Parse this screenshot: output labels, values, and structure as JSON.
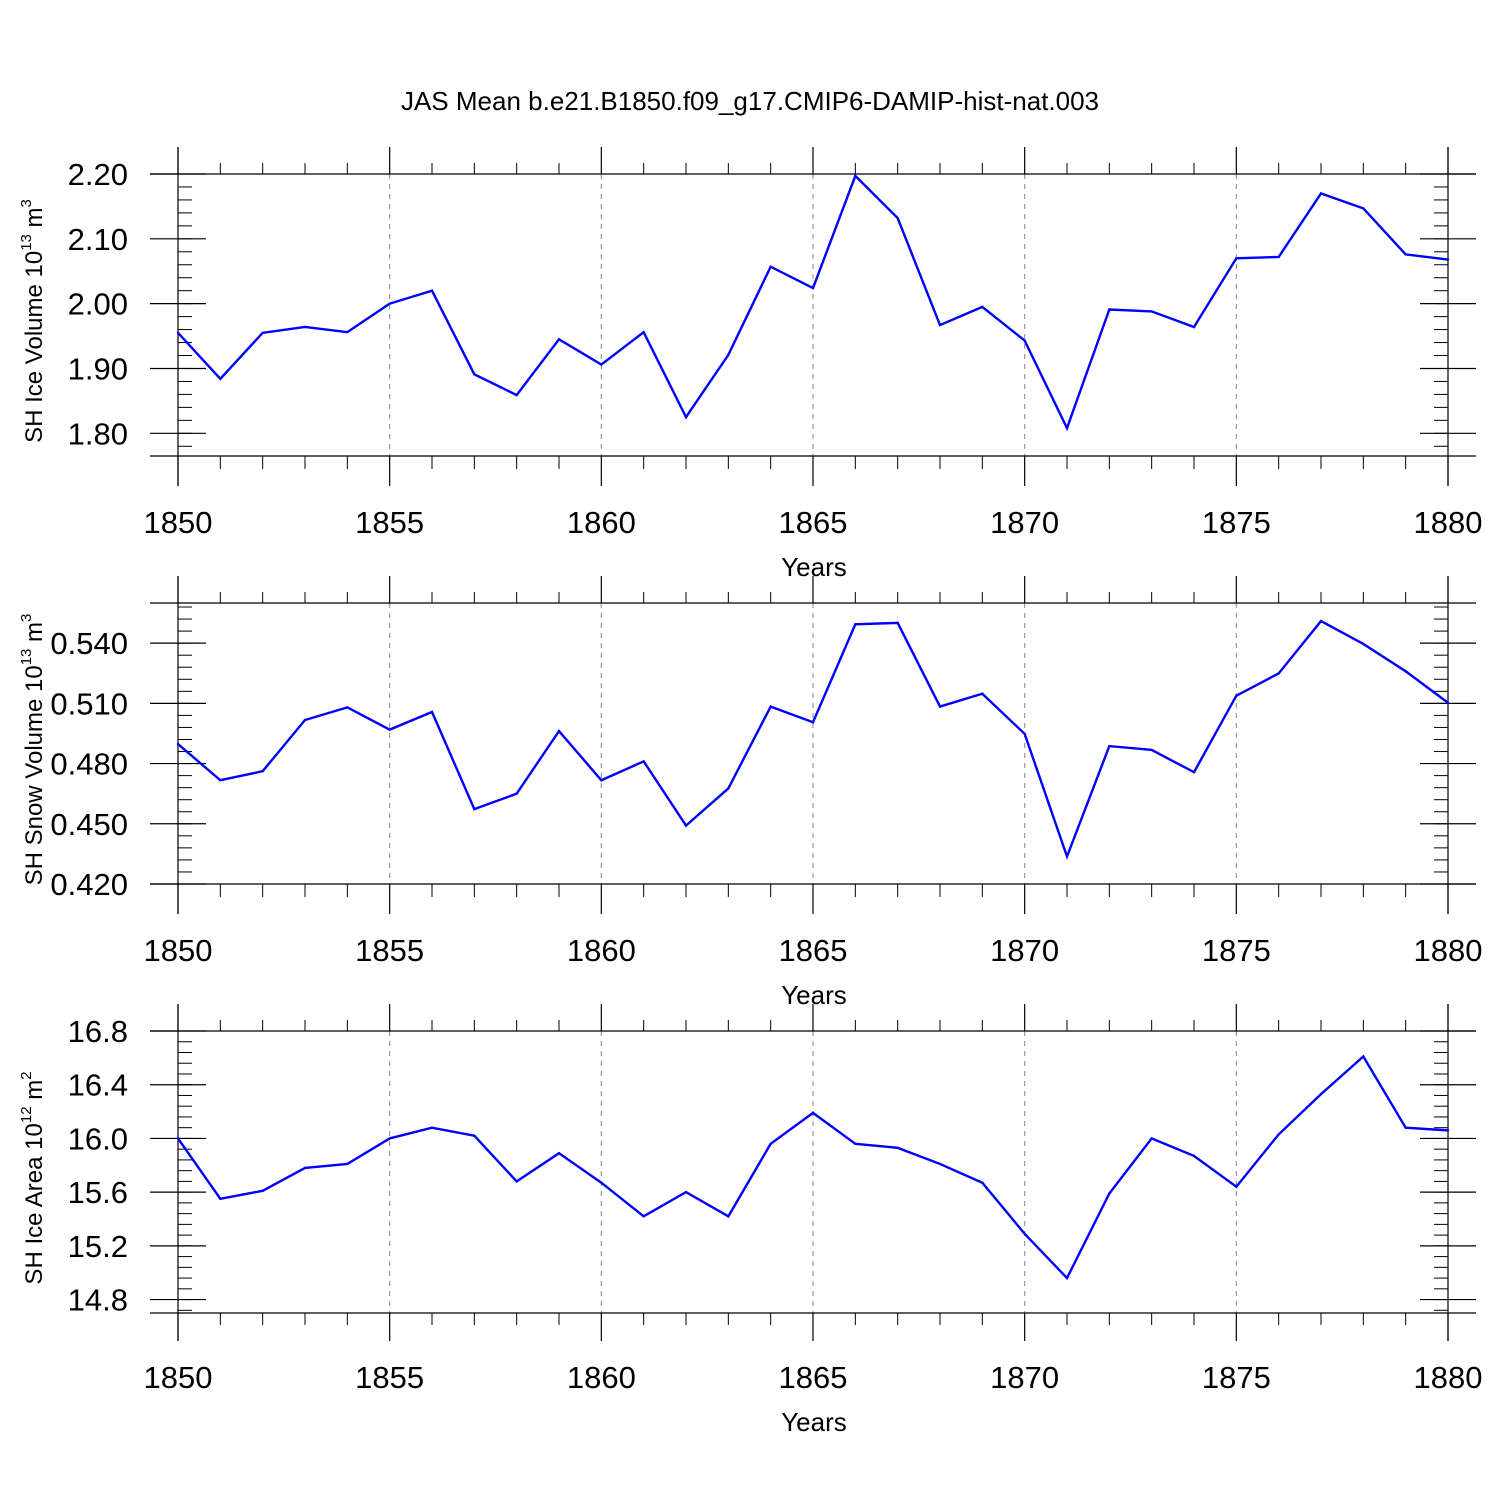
{
  "figure": {
    "title": "JAS Mean b.e21.B1850.f09_g17.CMIP6-DAMIP-hist-nat.003",
    "line_color": "#0000ff",
    "grid_color": "#999999"
  },
  "chart_data": [
    {
      "type": "line",
      "title": "JAS Mean b.e21.B1850.f09_g17.CMIP6-DAMIP-hist-nat.003",
      "xlabel": "Years",
      "ylabel": {
        "text": "SH Ice Volume 10",
        "sup": "13",
        "unit": " m",
        "unit_sup": "3"
      },
      "xlim": [
        1850,
        1880
      ],
      "ylim": [
        1.765,
        2.2
      ],
      "x_ticks": [
        1850,
        1855,
        1860,
        1865,
        1870,
        1875,
        1880
      ],
      "x_tick_labels": [
        "1850",
        "1855",
        "1860",
        "1865",
        "1870",
        "1875",
        "1880"
      ],
      "y_ticks": [
        1.8,
        1.9,
        2.0,
        2.1,
        2.2
      ],
      "y_tick_labels": [
        "1.80",
        "1.90",
        "2.00",
        "2.10",
        "2.20"
      ],
      "y_minor_step": 0.02,
      "grid": "dashed vertical at major x ticks",
      "series": [
        {
          "name": "SH Ice Volume",
          "x": [
            1850,
            1851,
            1852,
            1853,
            1854,
            1855,
            1856,
            1857,
            1858,
            1859,
            1860,
            1861,
            1862,
            1863,
            1864,
            1865,
            1866,
            1867,
            1868,
            1869,
            1870,
            1871,
            1872,
            1873,
            1874,
            1875,
            1876,
            1877,
            1878,
            1879,
            1880
          ],
          "values": [
            1.955,
            1.884,
            1.955,
            1.964,
            1.956,
            2.0,
            2.02,
            1.891,
            1.859,
            1.945,
            1.906,
            1.956,
            1.825,
            1.921,
            2.057,
            2.024,
            2.197,
            2.132,
            1.967,
            1.995,
            1.943,
            1.808,
            1.991,
            1.988,
            1.964,
            2.07,
            2.072,
            2.17,
            2.147,
            2.076,
            2.068
          ]
        }
      ]
    },
    {
      "type": "line",
      "title": "",
      "xlabel": "Years",
      "ylabel": {
        "text": "SH Snow Volume 10",
        "sup": "13",
        "unit": " m",
        "unit_sup": "3"
      },
      "xlim": [
        1850,
        1880
      ],
      "ylim": [
        0.42,
        0.56
      ],
      "x_ticks": [
        1850,
        1855,
        1860,
        1865,
        1870,
        1875,
        1880
      ],
      "x_tick_labels": [
        "1850",
        "1855",
        "1860",
        "1865",
        "1870",
        "1875",
        "1880"
      ],
      "y_ticks": [
        0.42,
        0.45,
        0.48,
        0.51,
        0.54
      ],
      "y_tick_labels": [
        "0.420",
        "0.450",
        "0.480",
        "0.510",
        "0.540"
      ],
      "y_minor_step": 0.006,
      "grid": "dashed vertical at major x ticks",
      "series": [
        {
          "name": "SH Snow Volume",
          "x": [
            1850,
            1851,
            1852,
            1853,
            1854,
            1855,
            1856,
            1857,
            1858,
            1859,
            1860,
            1861,
            1862,
            1863,
            1864,
            1865,
            1866,
            1867,
            1868,
            1869,
            1870,
            1871,
            1872,
            1873,
            1874,
            1875,
            1876,
            1877,
            1878,
            1879,
            1880
          ],
          "values": [
            0.4897,
            0.4717,
            0.4762,
            0.5017,
            0.508,
            0.4969,
            0.5057,
            0.4573,
            0.465,
            0.4962,
            0.4717,
            0.4811,
            0.4491,
            0.4676,
            0.5084,
            0.5006,
            0.5494,
            0.5501,
            0.5084,
            0.5148,
            0.4948,
            0.4337,
            0.4887,
            0.4868,
            0.4757,
            0.5138,
            0.5249,
            0.551,
            0.5396,
            0.526,
            0.5103
          ]
        }
      ]
    },
    {
      "type": "line",
      "title": "",
      "xlabel": "Years",
      "ylabel": {
        "text": "SH Ice Area 10",
        "sup": "12",
        "unit": " m",
        "unit_sup": "2"
      },
      "xlim": [
        1850,
        1880
      ],
      "ylim": [
        14.7,
        16.8
      ],
      "x_ticks": [
        1850,
        1855,
        1860,
        1865,
        1870,
        1875,
        1880
      ],
      "x_tick_labels": [
        "1850",
        "1855",
        "1860",
        "1865",
        "1870",
        "1875",
        "1880"
      ],
      "y_ticks": [
        14.8,
        15.2,
        15.6,
        16.0,
        16.4,
        16.8
      ],
      "y_tick_labels": [
        "14.8",
        "15.2",
        "15.6",
        "16.0",
        "16.4",
        "16.8"
      ],
      "y_minor_step": 0.08,
      "grid": "dashed vertical at major x ticks",
      "series": [
        {
          "name": "SH Ice Area",
          "x": [
            1850,
            1851,
            1852,
            1853,
            1854,
            1855,
            1856,
            1857,
            1858,
            1859,
            1860,
            1861,
            1862,
            1863,
            1864,
            1865,
            1866,
            1867,
            1868,
            1869,
            1870,
            1871,
            1872,
            1873,
            1874,
            1875,
            1876,
            1877,
            1878,
            1879,
            1880
          ],
          "values": [
            16.0,
            15.55,
            15.61,
            15.78,
            15.81,
            16.0,
            16.08,
            16.02,
            15.68,
            15.89,
            15.67,
            15.42,
            15.6,
            15.42,
            15.96,
            16.19,
            15.96,
            15.93,
            15.81,
            15.67,
            15.29,
            14.96,
            15.59,
            16.0,
            15.87,
            15.64,
            16.03,
            16.33,
            16.61,
            16.08,
            16.06
          ]
        }
      ]
    }
  ]
}
